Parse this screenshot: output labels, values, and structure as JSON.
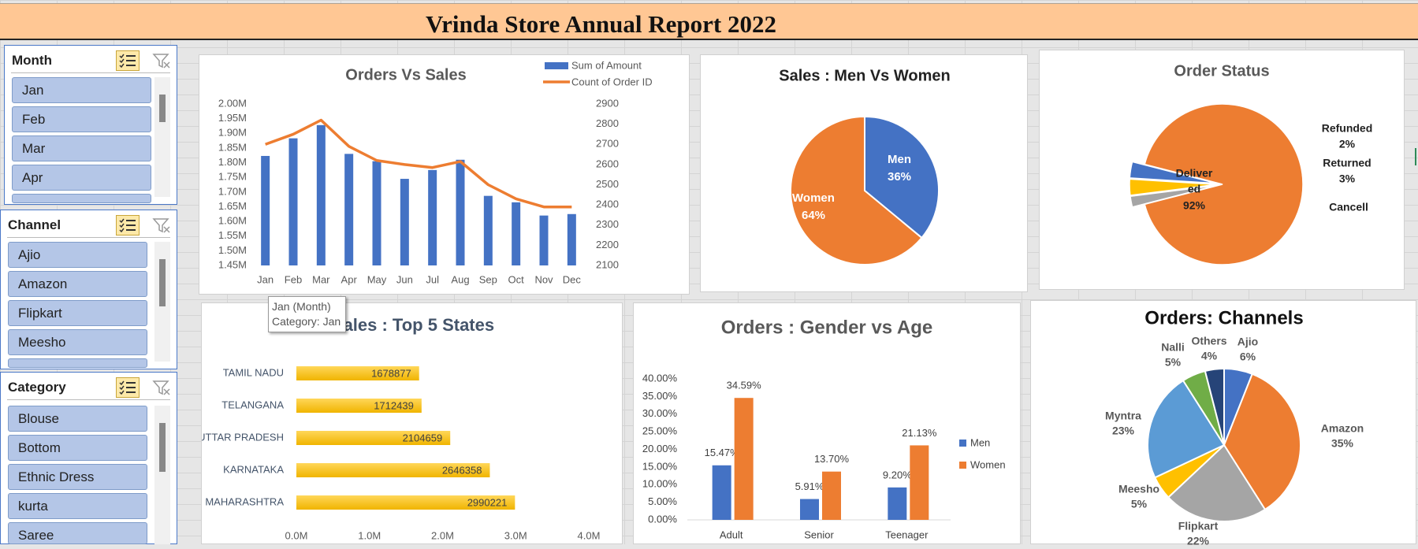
{
  "report": {
    "title": "Vrinda Store Annual Report 2022"
  },
  "slicers": [
    {
      "title": "Month",
      "items": [
        "Jan",
        "Feb",
        "Mar",
        "Apr"
      ]
    },
    {
      "title": "Channel",
      "items": [
        "Ajio",
        "Amazon",
        "Flipkart",
        "Meesho"
      ]
    },
    {
      "title": "Category",
      "items": [
        "Blouse",
        "Bottom",
        "Ethnic Dress",
        "kurta",
        "Saree"
      ]
    }
  ],
  "tooltip": {
    "line1": "Jan (Month)",
    "line2": "Category: Jan"
  },
  "colors": {
    "blue": "#4472c4",
    "orange": "#ed7d31",
    "gray": "#a5a5a5",
    "yellow": "#ffc000",
    "lightblue": "#5b9bd5",
    "green": "#70ad47",
    "navy": "#264478",
    "title_gray": "#595959",
    "title_navy": "#44546a"
  },
  "chart_data": [
    {
      "type": "bar",
      "title": "Orders Vs Sales",
      "categories": [
        "Jan",
        "Feb",
        "Mar",
        "Apr",
        "May",
        "Jun",
        "Jul",
        "Aug",
        "Sep",
        "Oct",
        "Nov",
        "Dec"
      ],
      "series": [
        {
          "name": "Sum of Amount",
          "type": "bar",
          "axis": "left",
          "values": [
            1823000,
            1883000,
            1928000,
            1830000,
            1805000,
            1745000,
            1775000,
            1810000,
            1687000,
            1665000,
            1620000,
            1625000
          ]
        },
        {
          "name": "Count of Order ID",
          "type": "line",
          "axis": "right",
          "values": [
            2700,
            2750,
            2820,
            2690,
            2620,
            2600,
            2585,
            2615,
            2500,
            2430,
            2390,
            2390
          ]
        }
      ],
      "ylim": [
        1450000,
        2000000
      ],
      "yticks": [
        "2.00M",
        "1.95M",
        "1.90M",
        "1.85M",
        "1.80M",
        "1.75M",
        "1.70M",
        "1.65M",
        "1.60M",
        "1.55M",
        "1.50M",
        "1.45M"
      ],
      "y2lim": [
        2100,
        2900
      ],
      "y2ticks": [
        "2900",
        "2800",
        "2700",
        "2600",
        "2500",
        "2400",
        "2300",
        "2200",
        "2100"
      ],
      "legend": "top-right"
    },
    {
      "type": "pie",
      "title": "Sales : Men Vs Women",
      "slices": [
        {
          "label": "Men",
          "pct_text": "36%",
          "value": 36,
          "color": "#4472c4"
        },
        {
          "label": "Women",
          "pct_text": "64%",
          "value": 64,
          "color": "#ed7d31"
        }
      ]
    },
    {
      "type": "pie",
      "title": "Order Status",
      "slices": [
        {
          "label": "Deliver ed",
          "pct_text": "92%",
          "value": 92,
          "color": "#ed7d31"
        },
        {
          "label": "Refunded",
          "pct_text": "2%",
          "value": 2,
          "color": "#a5a5a5"
        },
        {
          "label": "Returned",
          "pct_text": "3%",
          "value": 3,
          "color": "#ffc000"
        },
        {
          "label": "Cancell",
          "pct_text": "",
          "value": 3,
          "color": "#4472c4"
        }
      ]
    },
    {
      "type": "bar",
      "orientation": "horizontal",
      "title": "Sales : Top 5 States",
      "categories": [
        "TAMIL NADU",
        "TELANGANA",
        "UTTAR PRADESH",
        "KARNATAKA",
        "MAHARASHTRA"
      ],
      "values": [
        1678877,
        1712439,
        2104659,
        2646358,
        2990221
      ],
      "xlim": [
        0,
        4000000
      ],
      "xticks": [
        "0.0M",
        "1.0M",
        "2.0M",
        "3.0M",
        "4.0M"
      ]
    },
    {
      "type": "bar",
      "title": "Orders : Gender vs Age",
      "categories": [
        "Adult",
        "Senior",
        "Teenager"
      ],
      "series": [
        {
          "name": "Men",
          "values": [
            15.47,
            5.91,
            9.2
          ],
          "labels": [
            "15.47%",
            "5.91%",
            "9.20%"
          ]
        },
        {
          "name": "Women",
          "values": [
            34.59,
            13.7,
            21.13
          ],
          "labels": [
            "34.59%",
            "13.70%",
            "21.13%"
          ]
        }
      ],
      "ylim": [
        0,
        40
      ],
      "yticks": [
        "40.00%",
        "35.00%",
        "30.00%",
        "25.00%",
        "20.00%",
        "15.00%",
        "10.00%",
        "5.00%",
        "0.00%"
      ],
      "legend": "right"
    },
    {
      "type": "pie",
      "title": "Orders: Channels",
      "slices": [
        {
          "label": "Ajio",
          "pct_text": "6%",
          "value": 6,
          "color": "#4472c4"
        },
        {
          "label": "Amazon",
          "pct_text": "35%",
          "value": 35,
          "color": "#ed7d31"
        },
        {
          "label": "Flipkart",
          "pct_text": "22%",
          "value": 22,
          "color": "#a5a5a5"
        },
        {
          "label": "Meesho",
          "pct_text": "5%",
          "value": 5,
          "color": "#ffc000"
        },
        {
          "label": "Myntra",
          "pct_text": "23%",
          "value": 23,
          "color": "#5b9bd5"
        },
        {
          "label": "Nalli",
          "pct_text": "5%",
          "value": 5,
          "color": "#70ad47"
        },
        {
          "label": "Others",
          "pct_text": "4%",
          "value": 4,
          "color": "#264478"
        }
      ]
    }
  ]
}
